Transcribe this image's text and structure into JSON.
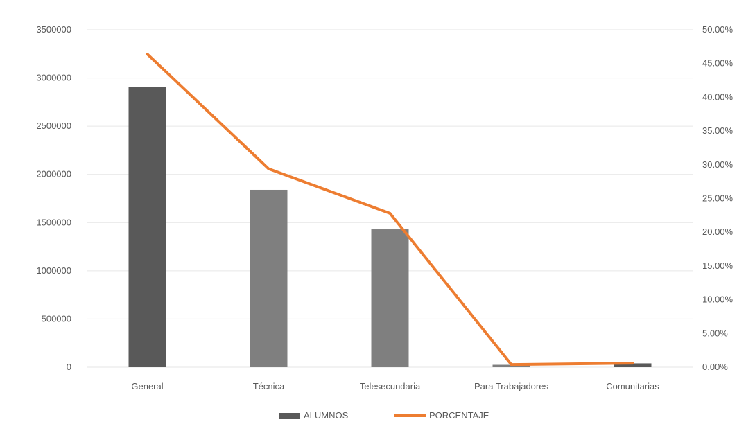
{
  "chart_data": {
    "type": "bar",
    "categories": [
      "General",
      "Técnica",
      "Telesecundaria",
      "Para Trabajadores",
      "Comunitarias"
    ],
    "series": [
      {
        "name": "ALUMNOS",
        "type": "bar",
        "axis": "left",
        "values": [
          2910000,
          1840000,
          1430000,
          25000,
          40000
        ],
        "colors": [
          "#595959",
          "#7f7f7f",
          "#7f7f7f",
          "#7f7f7f",
          "#595959"
        ]
      },
      {
        "name": "PORCENTAJE",
        "type": "line",
        "axis": "right",
        "values": [
          0.464,
          0.294,
          0.228,
          0.004,
          0.006
        ],
        "color": "#ed7d31"
      }
    ],
    "y_left": {
      "ylim": [
        0,
        3500000
      ],
      "ticks": [
        "0",
        "500000",
        "1000000",
        "1500000",
        "2000000",
        "2500000",
        "3000000",
        "3500000"
      ]
    },
    "y_right": {
      "ylim": [
        0,
        0.5
      ],
      "ticks": [
        "0.00%",
        "5.00%",
        "10.00%",
        "15.00%",
        "20.00%",
        "25.00%",
        "30.00%",
        "35.00%",
        "40.00%",
        "45.00%",
        "50.00%"
      ]
    },
    "grid": true,
    "legend": {
      "position": "bottom",
      "items": [
        "ALUMNOS",
        "PORCENTAJE"
      ]
    }
  }
}
